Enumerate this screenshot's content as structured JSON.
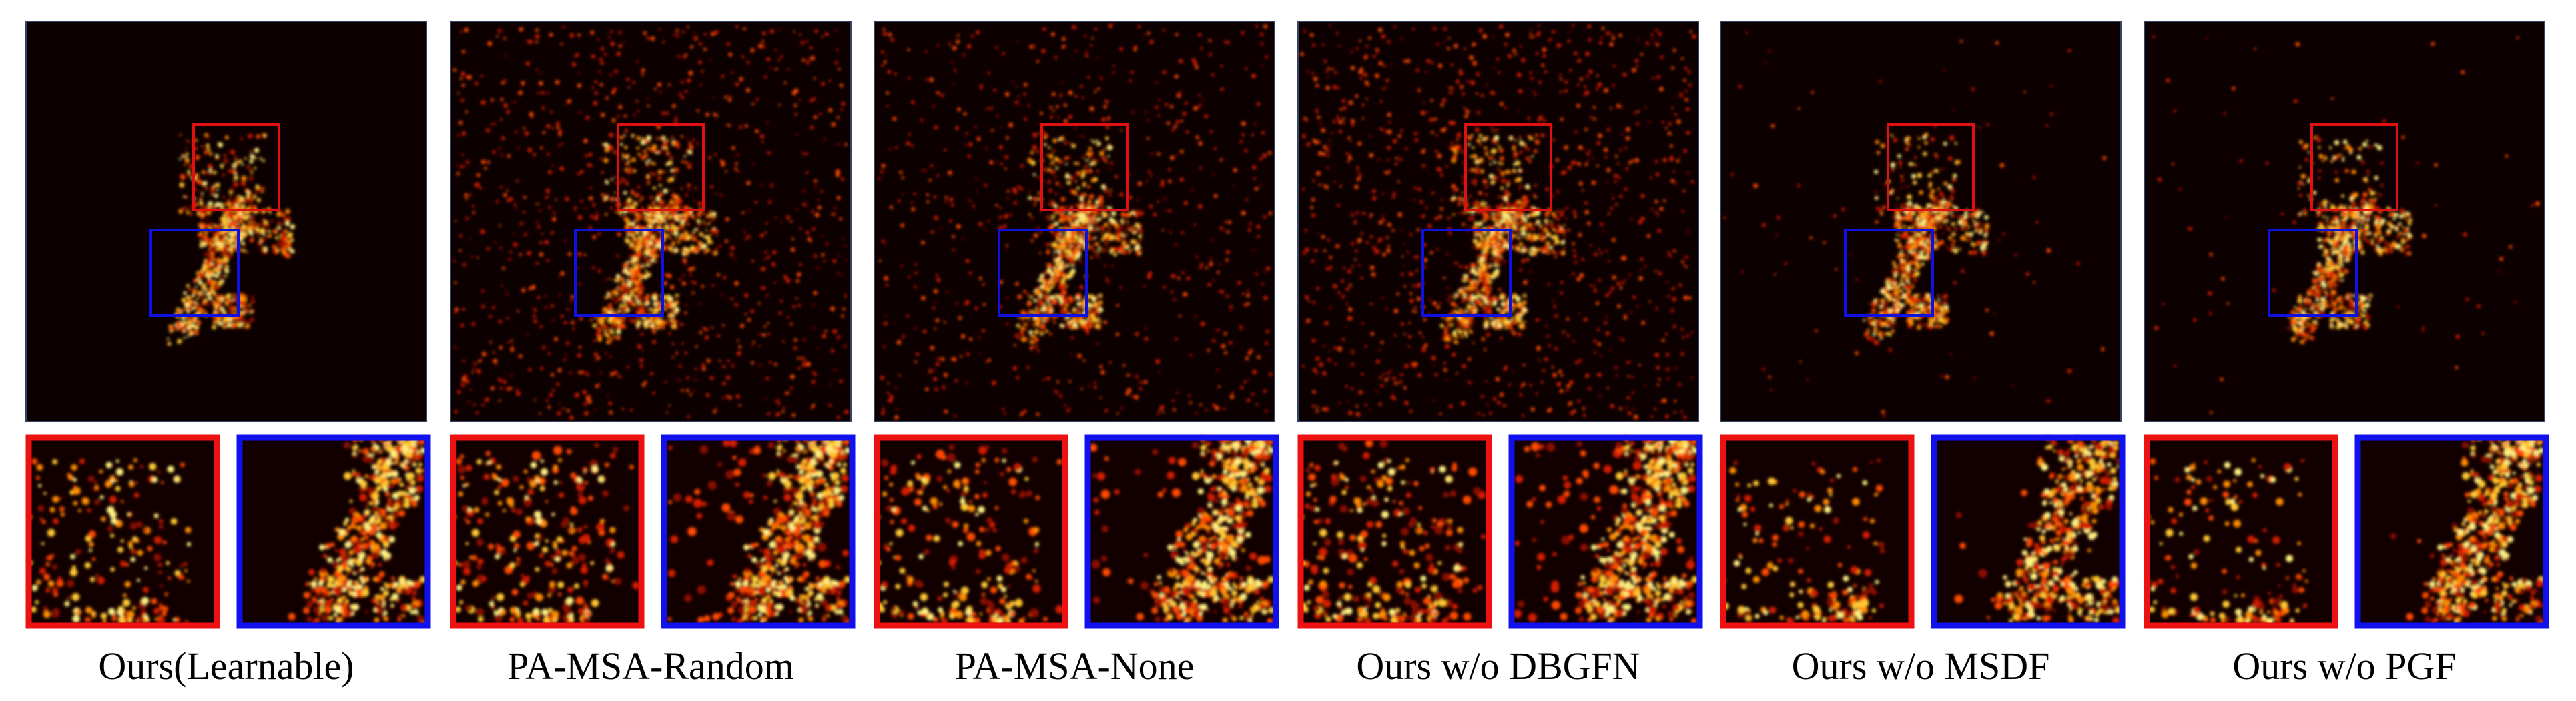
{
  "panels": [
    {
      "label": "Ours(Learnable)"
    },
    {
      "label": "PA-MSA-Random"
    },
    {
      "label": "PA-MSA-None"
    },
    {
      "label": "Ours w/o DBGFN"
    },
    {
      "label": "Ours w/o MSDF"
    },
    {
      "label": "Ours w/o PGF"
    }
  ]
}
